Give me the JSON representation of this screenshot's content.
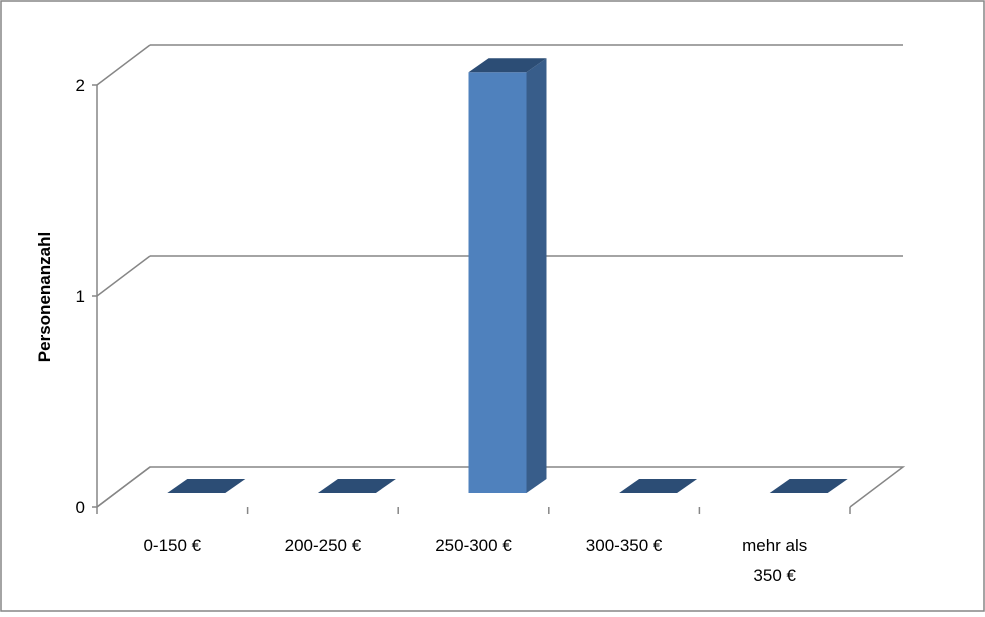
{
  "chart_data": {
    "type": "bar",
    "style": "3d-column",
    "title": "",
    "xlabel": "",
    "ylabel": "Personenanzahl",
    "categories": [
      [
        "0-150 €"
      ],
      [
        "200-250 €"
      ],
      [
        "250-300 €"
      ],
      [
        "300-350 €"
      ],
      [
        "mehr als",
        "350 €"
      ]
    ],
    "values": [
      0,
      0,
      2,
      0,
      0
    ],
    "ylim": [
      0,
      2
    ],
    "yticks": [
      "0",
      "1",
      "2"
    ],
    "grid": true,
    "legend": "none",
    "colors": {
      "bar_front": "#4f81bd",
      "bar_side": "#385d8a",
      "bar_top": "#2c4d75",
      "grid": "#868686",
      "axis": "#868686",
      "frame": "#868686"
    }
  }
}
